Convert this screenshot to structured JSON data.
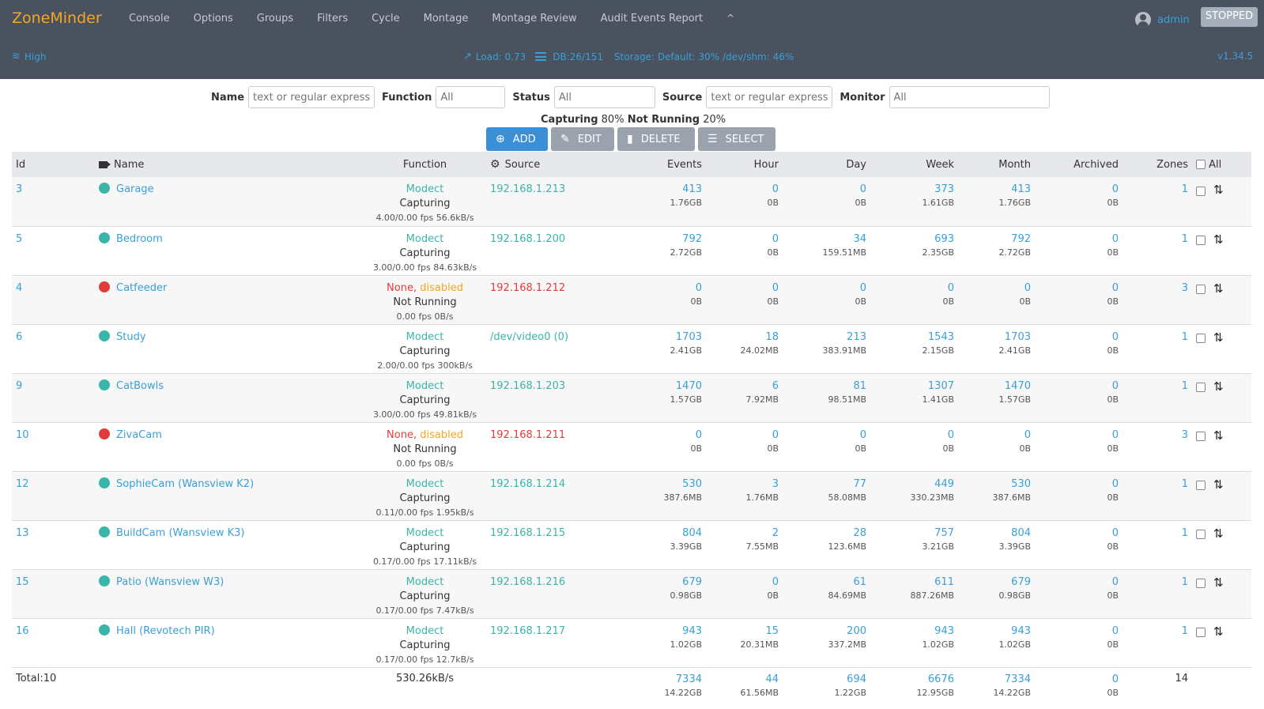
{
  "header": {
    "brand": "ZoneMinder",
    "nav": [
      "Console",
      "Options",
      "Groups",
      "Filters",
      "Cycle",
      "Montage",
      "Montage Review",
      "Audit Events Report"
    ],
    "user": "admin",
    "state_button": "STOPPED",
    "bandwidth": "High",
    "load": "Load: 0.73",
    "db": "DB:26/151",
    "storage": "Storage: Default: 30% /dev/shm: 46%",
    "version": "v1.34.5"
  },
  "filters": {
    "name_label": "Name",
    "name_placeholder": "text or regular expressi",
    "function_label": "Function",
    "function_value": "All",
    "status_label": "Status",
    "status_value": "All",
    "source_label": "Source",
    "source_placeholder": "text or regular expressi",
    "monitor_label": "Monitor",
    "monitor_value": "All"
  },
  "summary": {
    "capturing_label": "Capturing",
    "capturing_value": "80%",
    "notrunning_label": "Not Running",
    "notrunning_value": "20%"
  },
  "actions": {
    "add": "ADD",
    "edit": "EDIT",
    "delete": "DELETE",
    "select": "SELECT"
  },
  "columns": {
    "id": "Id",
    "name": "Name",
    "function": "Function",
    "source": "Source",
    "events": "Events",
    "hour": "Hour",
    "day": "Day",
    "week": "Week",
    "month": "Month",
    "archived": "Archived",
    "zones": "Zones",
    "all": "All"
  },
  "colors": {
    "online": "#3ab5a8",
    "offline": "#e03c3c"
  },
  "monitors": [
    {
      "id": "3",
      "name": "Garage",
      "status": "online",
      "func": "Modect",
      "dis": "",
      "state": "Capturing",
      "fps": "4.00/0.00 fps 56.6kB/s",
      "source": "192.168.1.213",
      "events": "413",
      "events_size": "1.76GB",
      "hour": "0",
      "hour_size": "0B",
      "day": "0",
      "day_size": "0B",
      "week": "373",
      "week_size": "1.61GB",
      "month": "413",
      "month_size": "1.76GB",
      "arch": "0",
      "arch_size": "0B",
      "zones": "1"
    },
    {
      "id": "5",
      "name": "Bedroom",
      "status": "online",
      "func": "Modect",
      "dis": "",
      "state": "Capturing",
      "fps": "3.00/0.00 fps 84.63kB/s",
      "source": "192.168.1.200",
      "events": "792",
      "events_size": "2.72GB",
      "hour": "0",
      "hour_size": "0B",
      "day": "34",
      "day_size": "159.51MB",
      "week": "693",
      "week_size": "2.35GB",
      "month": "792",
      "month_size": "2.72GB",
      "arch": "0",
      "arch_size": "0B",
      "zones": "1"
    },
    {
      "id": "4",
      "name": "Catfeeder",
      "status": "offline",
      "func": "None,",
      "dis": "disabled",
      "state": "Not Running",
      "fps": "0.00 fps 0B/s",
      "source": "192.168.1.212",
      "events": "0",
      "events_size": "0B",
      "hour": "0",
      "hour_size": "0B",
      "day": "0",
      "day_size": "0B",
      "week": "0",
      "week_size": "0B",
      "month": "0",
      "month_size": "0B",
      "arch": "0",
      "arch_size": "0B",
      "zones": "3"
    },
    {
      "id": "6",
      "name": "Study",
      "status": "online",
      "func": "Modect",
      "dis": "",
      "state": "Capturing",
      "fps": "2.00/0.00 fps 300kB/s",
      "source": "/dev/video0 (0)",
      "events": "1703",
      "events_size": "2.41GB",
      "hour": "18",
      "hour_size": "24.02MB",
      "day": "213",
      "day_size": "383.91MB",
      "week": "1543",
      "week_size": "2.15GB",
      "month": "1703",
      "month_size": "2.41GB",
      "arch": "0",
      "arch_size": "0B",
      "zones": "1"
    },
    {
      "id": "9",
      "name": "CatBowls",
      "status": "online",
      "func": "Modect",
      "dis": "",
      "state": "Capturing",
      "fps": "3.00/0.00 fps 49.81kB/s",
      "source": "192.168.1.203",
      "events": "1470",
      "events_size": "1.57GB",
      "hour": "6",
      "hour_size": "7.92MB",
      "day": "81",
      "day_size": "98.51MB",
      "week": "1307",
      "week_size": "1.41GB",
      "month": "1470",
      "month_size": "1.57GB",
      "arch": "0",
      "arch_size": "0B",
      "zones": "1"
    },
    {
      "id": "10",
      "name": "ZivaCam",
      "status": "offline",
      "func": "None,",
      "dis": "disabled",
      "state": "Not Running",
      "fps": "0.00 fps 0B/s",
      "source": "192.168.1.211",
      "events": "0",
      "events_size": "0B",
      "hour": "0",
      "hour_size": "0B",
      "day": "0",
      "day_size": "0B",
      "week": "0",
      "week_size": "0B",
      "month": "0",
      "month_size": "0B",
      "arch": "0",
      "arch_size": "0B",
      "zones": "3"
    },
    {
      "id": "12",
      "name": "SophieCam (Wansview K2)",
      "status": "online",
      "func": "Modect",
      "dis": "",
      "state": "Capturing",
      "fps": "0.11/0.00 fps 1.95kB/s",
      "source": "192.168.1.214",
      "events": "530",
      "events_size": "387.6MB",
      "hour": "3",
      "hour_size": "1.76MB",
      "day": "77",
      "day_size": "58.08MB",
      "week": "449",
      "week_size": "330.23MB",
      "month": "530",
      "month_size": "387.6MB",
      "arch": "0",
      "arch_size": "0B",
      "zones": "1"
    },
    {
      "id": "13",
      "name": "BuildCam (Wansview K3)",
      "status": "online",
      "func": "Modect",
      "dis": "",
      "state": "Capturing",
      "fps": "0.17/0.00 fps 17.11kB/s",
      "source": "192.168.1.215",
      "events": "804",
      "events_size": "3.39GB",
      "hour": "2",
      "hour_size": "7.55MB",
      "day": "28",
      "day_size": "123.6MB",
      "week": "757",
      "week_size": "3.21GB",
      "month": "804",
      "month_size": "3.39GB",
      "arch": "0",
      "arch_size": "0B",
      "zones": "1"
    },
    {
      "id": "15",
      "name": "Patio (Wansview W3)",
      "status": "online",
      "func": "Modect",
      "dis": "",
      "state": "Capturing",
      "fps": "0.17/0.00 fps 7.47kB/s",
      "source": "192.168.1.216",
      "events": "679",
      "events_size": "0.98GB",
      "hour": "0",
      "hour_size": "0B",
      "day": "61",
      "day_size": "84.69MB",
      "week": "611",
      "week_size": "887.26MB",
      "month": "679",
      "month_size": "0.98GB",
      "arch": "0",
      "arch_size": "0B",
      "zones": "1"
    },
    {
      "id": "16",
      "name": "Hall (Revotech PIR)",
      "status": "online",
      "func": "Modect",
      "dis": "",
      "state": "Capturing",
      "fps": "0.17/0.00 fps 12.7kB/s",
      "source": "192.168.1.217",
      "events": "943",
      "events_size": "1.02GB",
      "hour": "15",
      "hour_size": "20.31MB",
      "day": "200",
      "day_size": "337.2MB",
      "week": "943",
      "week_size": "1.02GB",
      "month": "943",
      "month_size": "1.02GB",
      "arch": "0",
      "arch_size": "0B",
      "zones": "1"
    }
  ],
  "totals": {
    "label": "Total:10",
    "bandwidth": "530.26kB/s",
    "events": "7334",
    "events_size": "14.22GB",
    "hour": "44",
    "hour_size": "61.56MB",
    "day": "694",
    "day_size": "1.22GB",
    "week": "6676",
    "week_size": "12.95GB",
    "month": "7334",
    "month_size": "14.22GB",
    "arch": "0",
    "arch_size": "0B",
    "zones": "14"
  }
}
